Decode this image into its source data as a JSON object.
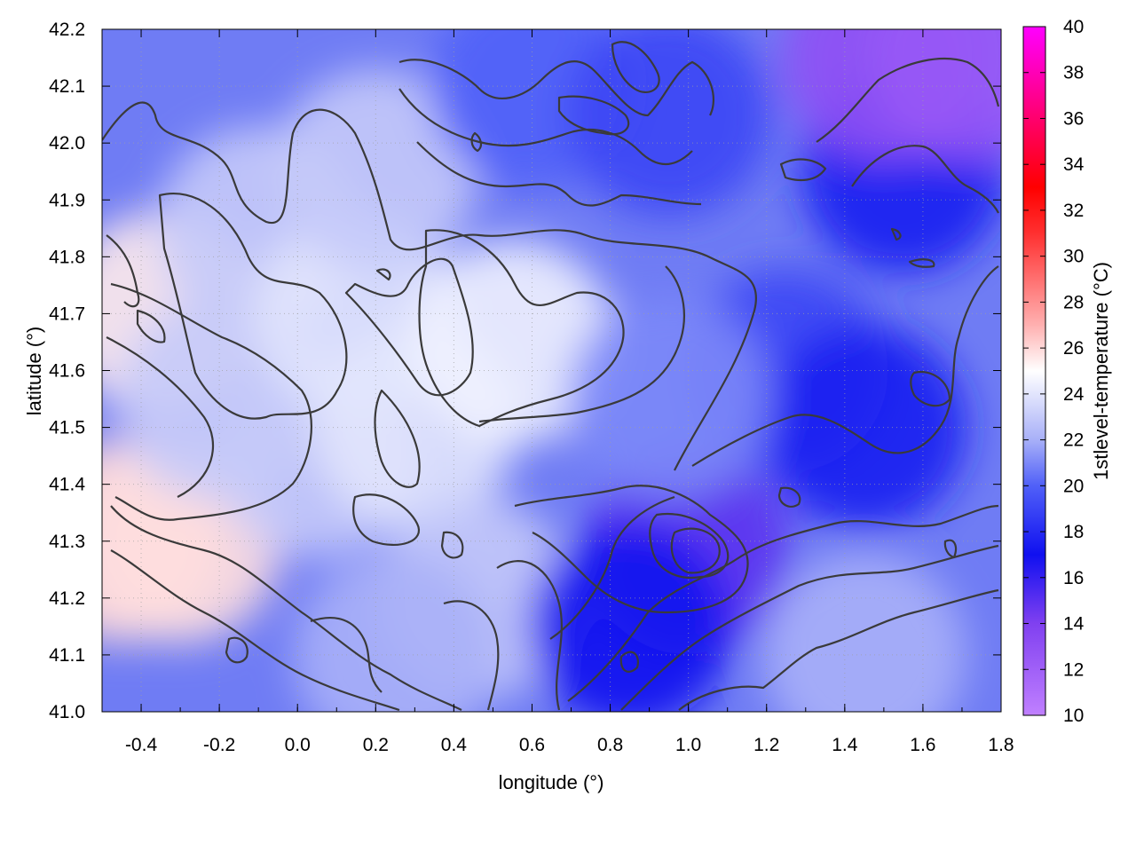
{
  "chart_data": {
    "type": "heatmap",
    "title": "",
    "xlabel": "longitude (°)",
    "ylabel": "latitude (°)",
    "colorbar_label": "1stlevel-temperature (°C)",
    "xlim": [
      -0.5,
      1.8
    ],
    "ylim": [
      41.0,
      42.2
    ],
    "x_ticks": [
      "-0.4",
      "-0.2",
      "0.0",
      "0.2",
      "0.4",
      "0.6",
      "0.8",
      "1.0",
      "1.2",
      "1.4",
      "1.6",
      "1.8"
    ],
    "x_tick_values": [
      -0.4,
      -0.2,
      0.0,
      0.2,
      0.4,
      0.6,
      0.8,
      1.0,
      1.2,
      1.4,
      1.6,
      1.8
    ],
    "y_ticks": [
      "41.0",
      "41.1",
      "41.2",
      "41.3",
      "41.4",
      "41.5",
      "41.6",
      "41.7",
      "41.8",
      "41.9",
      "42.0",
      "42.1",
      "42.2"
    ],
    "y_tick_values": [
      41.0,
      41.1,
      41.2,
      41.3,
      41.4,
      41.5,
      41.6,
      41.7,
      41.8,
      41.9,
      42.0,
      42.1,
      42.2
    ],
    "colorbar_range": [
      10,
      40
    ],
    "colorbar_ticks": [
      "10",
      "12",
      "14",
      "16",
      "18",
      "20",
      "22",
      "24",
      "26",
      "28",
      "30",
      "32",
      "34",
      "36",
      "38",
      "40"
    ],
    "colorbar_tick_values": [
      10,
      12,
      14,
      16,
      18,
      20,
      22,
      24,
      26,
      28,
      30,
      32,
      34,
      36,
      38,
      40
    ],
    "colormap": [
      {
        "value": 10,
        "color": "#c080ff"
      },
      {
        "value": 14,
        "color": "#8040f0"
      },
      {
        "value": 17,
        "color": "#1010f0"
      },
      {
        "value": 20,
        "color": "#5060f8"
      },
      {
        "value": 22,
        "color": "#a8b0f8"
      },
      {
        "value": 25,
        "color": "#ffffff"
      },
      {
        "value": 27,
        "color": "#ffb0b0"
      },
      {
        "value": 31,
        "color": "#ff3030"
      },
      {
        "value": 33,
        "color": "#ff0000"
      },
      {
        "value": 40,
        "color": "#ff00ff"
      }
    ],
    "grid": true,
    "contours": true,
    "field_samples": [
      {
        "lon": -0.45,
        "lat": 41.3,
        "value": 26.0
      },
      {
        "lon": -0.35,
        "lat": 41.7,
        "value": 25.5
      },
      {
        "lon": -0.3,
        "lat": 41.3,
        "value": 25.8
      },
      {
        "lon": -0.2,
        "lat": 41.55,
        "value": 23.0
      },
      {
        "lon": -0.1,
        "lat": 41.85,
        "value": 23.0
      },
      {
        "lon": 0.05,
        "lat": 41.45,
        "value": 23.0
      },
      {
        "lon": 0.15,
        "lat": 41.7,
        "value": 24.0
      },
      {
        "lon": 0.3,
        "lat": 41.5,
        "value": 24.0
      },
      {
        "lon": 0.2,
        "lat": 41.95,
        "value": 23.0
      },
      {
        "lon": 0.55,
        "lat": 41.65,
        "value": 24.5
      },
      {
        "lon": 0.45,
        "lat": 41.2,
        "value": 23.0
      },
      {
        "lon": 0.25,
        "lat": 41.1,
        "value": 22.0
      },
      {
        "lon": 0.6,
        "lat": 42.1,
        "value": 20.0
      },
      {
        "lon": 0.95,
        "lat": 42.05,
        "value": 19.0
      },
      {
        "lon": 1.25,
        "lat": 41.6,
        "value": 19.0
      },
      {
        "lon": 1.45,
        "lat": 41.5,
        "value": 17.5
      },
      {
        "lon": 1.55,
        "lat": 41.95,
        "value": 17.5
      },
      {
        "lon": 1.0,
        "lat": 41.28,
        "value": 15.0
      },
      {
        "lon": 0.85,
        "lat": 41.15,
        "value": 17.0
      },
      {
        "lon": 1.5,
        "lat": 42.15,
        "value": 13.0
      },
      {
        "lon": 1.72,
        "lat": 42.15,
        "value": 12.5
      },
      {
        "lon": 1.45,
        "lat": 41.1,
        "value": 22.0
      },
      {
        "lon": 0.95,
        "lat": 41.55,
        "value": 21.0
      }
    ]
  }
}
